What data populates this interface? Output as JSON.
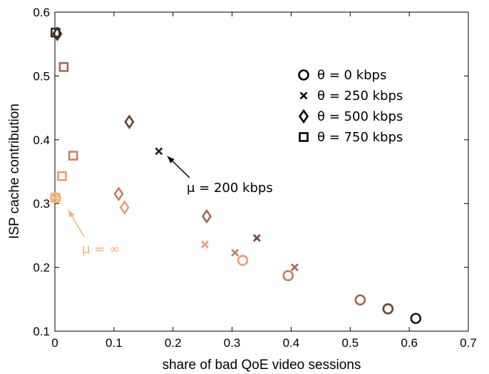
{
  "chart_data": {
    "type": "scatter",
    "xlabel": "share of bad QoE video sessions",
    "ylabel": "ISP cache contribution",
    "xlim": [
      0,
      0.7
    ],
    "ylim": [
      0.1,
      0.6
    ],
    "x_ticks": [
      "0",
      "0.1",
      "0.2",
      "0.3",
      "0.4",
      "0.5",
      "0.6",
      "0.7"
    ],
    "y_ticks": [
      "0.1",
      "0.2",
      "0.3",
      "0.4",
      "0.5",
      "0.6"
    ],
    "grid": false,
    "legend_position": "top-right",
    "series": [
      {
        "name": "θ = 0 kbps",
        "marker": "circle",
        "points": [
          {
            "x": 0.001,
            "y": 0.309,
            "mu": "inf"
          },
          {
            "x": 0.318,
            "y": 0.211,
            "mu": "200"
          },
          {
            "x": 0.395,
            "y": 0.187,
            "mu": "200"
          },
          {
            "x": 0.517,
            "y": 0.149,
            "mu": "200"
          },
          {
            "x": 0.564,
            "y": 0.135,
            "mu": "200"
          },
          {
            "x": 0.611,
            "y": 0.12,
            "mu": "200"
          }
        ]
      },
      {
        "name": "θ = 250 kbps",
        "marker": "x",
        "points": [
          {
            "x": 0.001,
            "y": 0.309,
            "mu": "inf"
          },
          {
            "x": 0.176,
            "y": 0.382,
            "mu": "200"
          },
          {
            "x": 0.254,
            "y": 0.236,
            "mu": "200"
          },
          {
            "x": 0.305,
            "y": 0.223,
            "mu": "200"
          },
          {
            "x": 0.342,
            "y": 0.246,
            "mu": "200"
          },
          {
            "x": 0.406,
            "y": 0.2,
            "mu": "200"
          }
        ]
      },
      {
        "name": "θ = 500 kbps",
        "marker": "diamond",
        "points": [
          {
            "x": 0.004,
            "y": 0.566,
            "mu": "200"
          },
          {
            "x": 0.108,
            "y": 0.315,
            "mu": "200"
          },
          {
            "x": 0.118,
            "y": 0.294,
            "mu": "200"
          },
          {
            "x": 0.126,
            "y": 0.428,
            "mu": "200"
          },
          {
            "x": 0.257,
            "y": 0.28,
            "mu": "200"
          }
        ]
      },
      {
        "name": "θ = 750 kbps",
        "marker": "square",
        "points": [
          {
            "x": 0.001,
            "y": 0.568,
            "mu": "200"
          },
          {
            "x": 0.015,
            "y": 0.514,
            "mu": "200"
          },
          {
            "x": 0.031,
            "y": 0.375,
            "mu": "200"
          },
          {
            "x": 0.012,
            "y": 0.343,
            "mu": "200"
          },
          {
            "x": 0.001,
            "y": 0.309,
            "mu": "inf"
          }
        ]
      }
    ],
    "point_colors": [
      [
        "#f2b36f",
        "#ec9a76",
        "#c08262",
        "#a06a52",
        "#6a4433",
        "#1a1a1a"
      ],
      [
        "#f2b36f",
        "#1a1a1a",
        "#ec9a76",
        "#c08262",
        "#6a4433",
        "#a06a52"
      ],
      [
        "#3a2a1e",
        "#c08262",
        "#ec9a76",
        "#6a4433",
        "#a06a52"
      ],
      [
        "#3a2a1e",
        "#a06a52",
        "#c08262",
        "#ec9a76",
        "#f2b36f"
      ]
    ],
    "annotations": [
      {
        "text": "μ = 200 kbps",
        "color": "#000000",
        "points_to": {
          "x": 0.176,
          "y": 0.382
        }
      },
      {
        "text": "μ = ∞",
        "color": "#f2b36f",
        "points_to": {
          "x": 0.001,
          "y": 0.309
        }
      }
    ]
  }
}
